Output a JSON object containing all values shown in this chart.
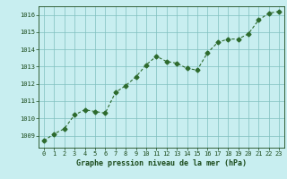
{
  "x": [
    0,
    1,
    2,
    3,
    4,
    5,
    6,
    7,
    8,
    9,
    10,
    11,
    12,
    13,
    14,
    15,
    16,
    17,
    18,
    19,
    20,
    21,
    22,
    23
  ],
  "y": [
    1008.7,
    1009.1,
    1009.4,
    1010.2,
    1010.5,
    1010.4,
    1010.3,
    1011.5,
    1011.9,
    1012.4,
    1013.1,
    1013.6,
    1013.3,
    1013.2,
    1012.9,
    1012.8,
    1013.8,
    1014.4,
    1014.6,
    1014.6,
    1014.9,
    1015.7,
    1016.1,
    1016.2
  ],
  "line_color": "#2d6a2d",
  "marker": "D",
  "marker_size": 2.5,
  "bg_color": "#c8eef0",
  "grid_color": "#7fbfbf",
  "xlabel": "Graphe pression niveau de la mer (hPa)",
  "xlabel_color": "#1a4a1a",
  "tick_color": "#1a4a1a",
  "ylim": [
    1008.3,
    1016.5
  ],
  "yticks": [
    1009,
    1010,
    1011,
    1012,
    1013,
    1014,
    1015,
    1016
  ],
  "xlim": [
    -0.5,
    23.5
  ],
  "xticks": [
    0,
    1,
    2,
    3,
    4,
    5,
    6,
    7,
    8,
    9,
    10,
    11,
    12,
    13,
    14,
    15,
    16,
    17,
    18,
    19,
    20,
    21,
    22,
    23
  ]
}
